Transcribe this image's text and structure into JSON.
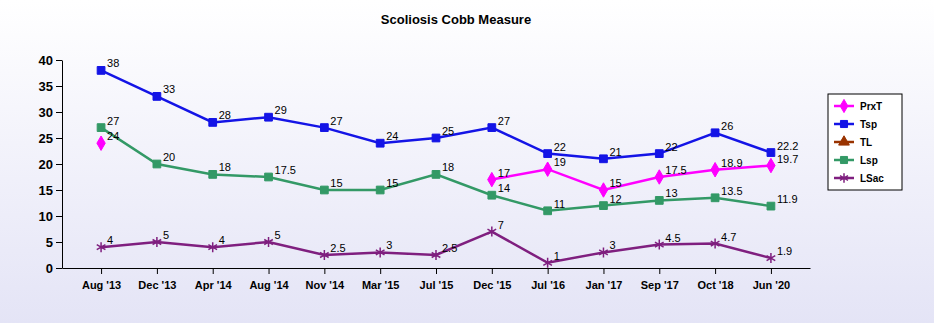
{
  "chart_data": {
    "type": "line",
    "title": "Scoliosis Cobb Measure",
    "categories": [
      "Aug '13",
      "Dec '13",
      "Apr '14",
      "Aug '14",
      "Nov '14",
      "Mar '15",
      "Jul '15",
      "Dec '15",
      "Jul '16",
      "Jan '17",
      "Sep '17",
      "Oct '18",
      "Jun '20"
    ],
    "series": [
      {
        "name": "PrxT",
        "color": "#ff00ff",
        "marker": "diamond",
        "line_style": "solid",
        "values": [
          24,
          null,
          null,
          null,
          null,
          null,
          null,
          17,
          19,
          15,
          17.5,
          18.9,
          19.7
        ]
      },
      {
        "name": "Tsp",
        "color": "#1414e6",
        "marker": "square",
        "line_style": "solid",
        "values": [
          38,
          33,
          28,
          29,
          27,
          24,
          25,
          27,
          22,
          21,
          22,
          26,
          22.2
        ]
      },
      {
        "name": "TL",
        "color": "#993300",
        "marker": "triangle",
        "line_style": "solid",
        "values": [
          null,
          null,
          null,
          null,
          null,
          null,
          null,
          null,
          null,
          null,
          null,
          null,
          null
        ]
      },
      {
        "name": "Lsp",
        "color": "#339966",
        "marker": "square",
        "line_style": "solid",
        "values": [
          27,
          20,
          18,
          17.5,
          15,
          15,
          18,
          14,
          11,
          12,
          13,
          13.5,
          11.9
        ]
      },
      {
        "name": "LSac",
        "color": "#7f1f7f",
        "marker": "asterisk",
        "line_style": "solid",
        "values": [
          4,
          5,
          4,
          5,
          2.5,
          3,
          2.5,
          7,
          1,
          3,
          4.5,
          4.7,
          1.9
        ]
      }
    ],
    "ylim": [
      0,
      40
    ],
    "yticks": [
      0,
      5,
      10,
      15,
      20,
      25,
      30,
      35,
      40
    ],
    "grid": false,
    "legend": "right",
    "data_labels": true
  }
}
